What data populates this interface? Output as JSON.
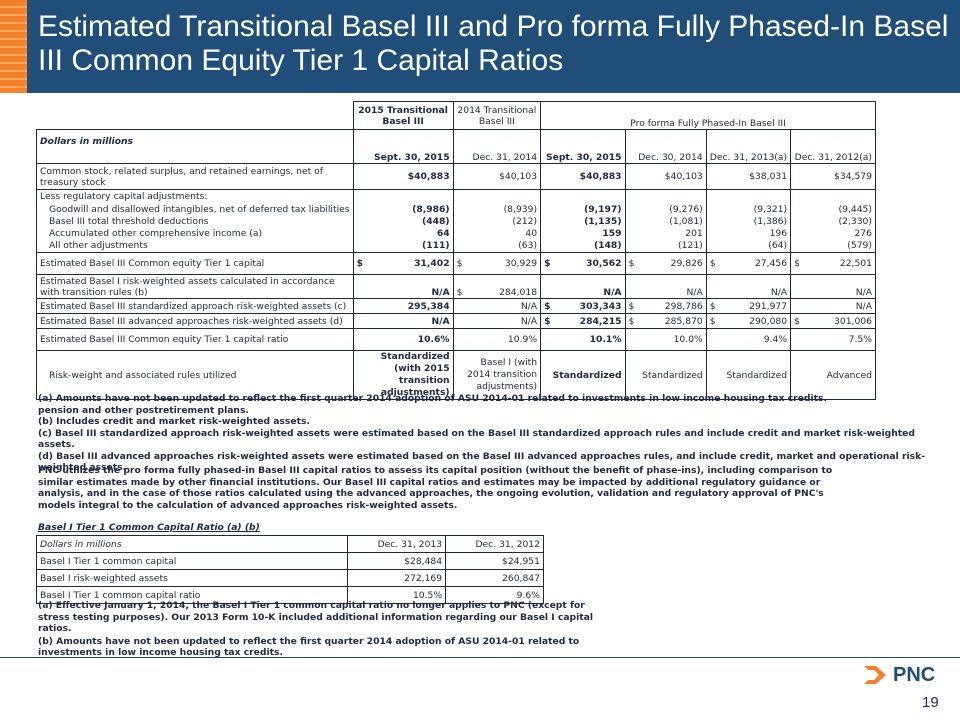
{
  "title": "Estimated Transitional Basel III and Pro forma Fully Phased-In Basel III Common Equity Tier 1 Capital Ratios",
  "main_table": {
    "header": {
      "col1": "2015 Transitional Basel III",
      "col2": "2014 Transitional Basel III",
      "proforma": "Pro forma Fully Phased-In Basel III",
      "dollars": "Dollars in millions",
      "dates": [
        "Sept. 30, 2015",
        "Dec. 31, 2014",
        "Sept. 30, 2015",
        "Dec. 30, 2014",
        "Dec. 31, 2013(a)",
        "Dec. 31, 2012(a)"
      ]
    },
    "rows": {
      "common_stock": {
        "label": "Common stock, related surplus, and retained earnings, net of treasury stock",
        "values": [
          "$40,883",
          "$40,103",
          "$40,883",
          "$40,103",
          "$38,031",
          "$34,579"
        ]
      },
      "less_adjustments": {
        "label": "Less regulatory capital adjustments:"
      },
      "goodwill": {
        "label": "Goodwill and disallowed intangibles, net of deferred tax liabilities",
        "values": [
          "(8,986)",
          "(8,939)",
          "(9,197)",
          "(9,276)",
          "(9,321)",
          "(9,445)"
        ]
      },
      "threshold": {
        "label": "Basel III total threshold deductions",
        "values": [
          "(448)",
          "(212)",
          "(1,135)",
          "(1,081)",
          "(1,386)",
          "(2,330)"
        ]
      },
      "aoci": {
        "label": "Accumulated other comprehensive income (a)",
        "values": [
          "64",
          "40",
          "159",
          "201",
          "196",
          "276"
        ]
      },
      "other": {
        "label": "All other adjustments",
        "values": [
          "(111)",
          "(63)",
          "(148)",
          "(121)",
          "(64)",
          "(579)"
        ]
      },
      "cet1": {
        "label": "Estimated Basel III Common equity Tier 1 capital",
        "values": [
          "31,402",
          "30,929",
          "30,562",
          "29,826",
          "27,456",
          "22,501"
        ]
      },
      "basel1_rwa": {
        "label": "Estimated Basel I risk-weighted assets calculated in accordance with transition rules (b)",
        "values": [
          "N/A",
          "284,018",
          "N/A",
          "N/A",
          "N/A",
          "N/A"
        ]
      },
      "std_rwa": {
        "label": "Estimated Basel III standardized approach risk-weighted assets (c)",
        "values": [
          "295,384",
          "N/A",
          "303,343",
          "298,786",
          "291,977",
          "N/A"
        ]
      },
      "adv_rwa": {
        "label": "Estimated Basel III advanced approaches risk-weighted assets (d)",
        "values": [
          "N/A",
          "N/A",
          "284,215",
          "285,870",
          "290,080",
          "301,006"
        ]
      },
      "ratio": {
        "label": "Estimated Basel III Common equity Tier 1 capital ratio",
        "values": [
          "10.6%",
          "10.9%",
          "10.1%",
          "10.0%",
          "9.4%",
          "7.5%"
        ]
      },
      "rules": {
        "label": "Risk-weight and associated rules utilized",
        "values": [
          "Standardized (with 2015 transition adjustments)",
          "Basel I (with 2014 transition adjustments)",
          "Standardized",
          "Standardized",
          "Standardized",
          "Advanced"
        ]
      }
    },
    "currency": "$"
  },
  "notes": [
    "(a) Amounts have not been updated to reflect the first quarter 2014 adoption of ASU 2014-01 related to investments in low income housing tax credits.",
    "pension and other postretirement plans.",
    "(b) Includes credit and market risk-weighted assets.",
    "(c) Basel III standardized approach risk-weighted assets were estimated based on the Basel III standardized approach rules and include credit and market risk-weighted assets.",
    "(d) Basel III advanced approaches risk-weighted assets were estimated based on the Basel III advanced approaches rules, and include credit, market and operational risk-weighted assets."
  ],
  "paragraph": "PNC utilizes the pro forma fully phased-in Basel III capital ratios to assess its capital position (without the benefit of phase-ins), including comparison to similar estimates made by other financial institutions. Our Basel III capital ratios and estimates may be impacted by additional regulatory guidance or analysis, and in the case of those ratios calculated using the advanced approaches, the ongoing evolution, validation and regulatory approval of PNC's models integral to the calculation of advanced approaches risk-weighted assets.",
  "basel1": {
    "title": "Basel I Tier 1 Common Capital Ratio (a) (b)",
    "dollars": "Dollars in millions",
    "dates": [
      "Dec. 31, 2013",
      "Dec. 31, 2012"
    ],
    "rows": [
      {
        "label": "Basel I Tier 1 common capital",
        "values": [
          "$28,484",
          "$24,951"
        ]
      },
      {
        "label": "Basel I risk-weighted assets",
        "values": [
          "272,169",
          "260,847"
        ]
      },
      {
        "label": "Basel I Tier 1 common capital ratio",
        "values": [
          "10.5%",
          "9.6%"
        ]
      }
    ],
    "notes": [
      "(a) Effective January 1, 2014, the Basel I Tier 1 common capital ratio no longer applies to PNC (except for stress testing purposes). Our 2013 Form 10-K included additional information regarding our Basel I capital ratios.",
      "(b) Amounts have not been updated to reflect the first quarter 2014 adoption of ASU 2014-01 related to investments in low income housing tax credits."
    ]
  },
  "logo_text": "PNC",
  "page_number": "19",
  "colors": {
    "header_bg": "#1f4e79",
    "stripe": "#f58025",
    "text": "#1f2a44"
  }
}
